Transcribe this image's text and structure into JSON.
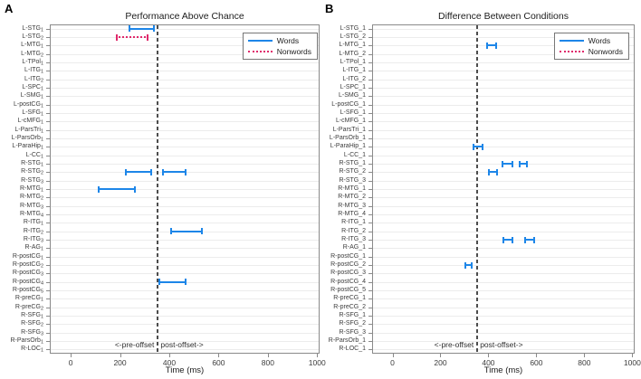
{
  "figure": {
    "panel_letters": [
      "A",
      "B"
    ],
    "legend": {
      "words": "Words",
      "nonwords": "Nonwords"
    },
    "colors": {
      "words_line": "#1d86e8",
      "nonwords_line": "#e0296b",
      "offset_line": "#4d4d4d",
      "grid": "#ececec",
      "axis": "#8a8a8a",
      "text": "#3c3c3c"
    }
  },
  "chart_data": [
    {
      "type": "range_bar",
      "panel": "A",
      "title": "Performance Above Chance",
      "xlabel": "Time (ms)",
      "x_ticks": [
        0,
        200,
        400,
        600,
        800,
        1000
      ],
      "xlim": [
        -85,
        1010
      ],
      "grid": true,
      "legend_position": "top-right",
      "y_label_style": "subscript",
      "offset_marker": {
        "x_ms": 350,
        "pre_label": "<-pre-offset",
        "post_label": "post-offset->"
      },
      "regions": [
        "L-STG_1",
        "L-STG_2",
        "L-MTG_1",
        "L-MTG_2",
        "L-TPol_1",
        "L-ITG_1",
        "L-ITG_2",
        "L-SPC_1",
        "L-SMG_1",
        "L-postCG_1",
        "L-SFG_1",
        "L-cMFG_1",
        "L-ParsTri_1",
        "L-ParsOrb_1",
        "L-ParaHip_1",
        "L-CC_1",
        "R-STG_1",
        "R-STG_2",
        "R-STG_3",
        "R-MTG_1",
        "R-MTG_2",
        "R-MTG_3",
        "R-MTG_4",
        "R-ITG_1",
        "R-ITG_2",
        "R-ITG_3",
        "R-AG_1",
        "R-postCG_1",
        "R-postCG_2",
        "R-postCG_3",
        "R-postCG_4",
        "R-postCG_5",
        "R-preCG_1",
        "R-preCG_2",
        "R-SFG_1",
        "R-SFG_2",
        "R-SFG_3",
        "R-ParsOrb_1",
        "R-LOC_1"
      ],
      "bars": [
        {
          "region": "L-STG_1",
          "condition": "words",
          "t_start_ms": 235,
          "t_end_ms": 340
        },
        {
          "region": "L-STG_2",
          "condition": "nonwords",
          "t_start_ms": 185,
          "t_end_ms": 315
        },
        {
          "region": "R-STG_2",
          "condition": "words",
          "t_start_ms": 220,
          "t_end_ms": 330
        },
        {
          "region": "R-STG_2",
          "condition": "words",
          "t_start_ms": 370,
          "t_end_ms": 470
        },
        {
          "region": "R-MTG_1",
          "condition": "words",
          "t_start_ms": 110,
          "t_end_ms": 265
        },
        {
          "region": "R-ITG_2",
          "condition": "words",
          "t_start_ms": 405,
          "t_end_ms": 535
        },
        {
          "region": "R-postCG_4",
          "condition": "words",
          "t_start_ms": 355,
          "t_end_ms": 470
        }
      ]
    },
    {
      "type": "range_bar",
      "panel": "B",
      "title": "Difference Between Conditions",
      "xlabel": "Time (ms)",
      "x_ticks": [
        0,
        200,
        400,
        600,
        800,
        1000
      ],
      "xlim": [
        -85,
        1010
      ],
      "grid": true,
      "legend_position": "top-right",
      "y_label_style": "underscore",
      "offset_marker": {
        "x_ms": 350,
        "pre_label": "<-pre-offset",
        "post_label": "post-offset->"
      },
      "regions": [
        "L-STG_1",
        "L-STG_2",
        "L-MTG_1",
        "L-MTG_2",
        "L-TPol_1",
        "L-ITG_1",
        "L-ITG_2",
        "L-SPC_1",
        "L-SMG_1",
        "L-postCG_1",
        "L-SFG_1",
        "L-cMFG_1",
        "L-ParsTri_1",
        "L-ParsOrb_1",
        "L-ParaHip_1",
        "L-CC_1",
        "R-STG_1",
        "R-STG_2",
        "R-STG_3",
        "R-MTG_1",
        "R-MTG_2",
        "R-MTG_3",
        "R-MTG_4",
        "R-ITG_1",
        "R-ITG_2",
        "R-ITG_3",
        "R-AG_1",
        "R-postCG_1",
        "R-postCG_2",
        "R-postCG_3",
        "R-postCG_4",
        "R-postCG_5",
        "R-preCG_1",
        "R-preCG_2",
        "R-SFG_1",
        "R-SFG_2",
        "R-SFG_3",
        "R-ParsOrb_1",
        "R-LOC_1"
      ],
      "bars": [
        {
          "region": "L-MTG_1",
          "condition": "words",
          "t_start_ms": 390,
          "t_end_ms": 435
        },
        {
          "region": "L-ParaHip_1",
          "condition": "words",
          "t_start_ms": 335,
          "t_end_ms": 380
        },
        {
          "region": "R-STG_1",
          "condition": "words",
          "t_start_ms": 455,
          "t_end_ms": 505
        },
        {
          "region": "R-STG_1",
          "condition": "words",
          "t_start_ms": 525,
          "t_end_ms": 565
        },
        {
          "region": "R-STG_2",
          "condition": "words",
          "t_start_ms": 400,
          "t_end_ms": 440
        },
        {
          "region": "R-ITG_3",
          "condition": "words",
          "t_start_ms": 460,
          "t_end_ms": 505
        },
        {
          "region": "R-ITG_3",
          "condition": "words",
          "t_start_ms": 550,
          "t_end_ms": 595
        },
        {
          "region": "R-postCG_2",
          "condition": "words",
          "t_start_ms": 300,
          "t_end_ms": 335
        }
      ]
    }
  ]
}
